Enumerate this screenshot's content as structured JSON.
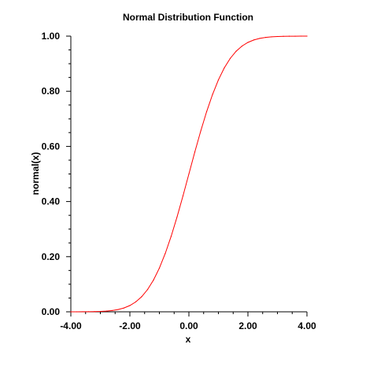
{
  "chart_data": {
    "type": "line",
    "title": "Normal Distribution Function",
    "xlabel": "x",
    "ylabel": "normal(x)",
    "xlim": [
      -4.0,
      4.0
    ],
    "ylim": [
      0.0,
      1.0
    ],
    "x_tick_labels": [
      "-4.00",
      "-2.00",
      "0.00",
      "2.00",
      "4.00"
    ],
    "y_tick_labels": [
      "0.00",
      "0.20",
      "0.40",
      "0.60",
      "0.80",
      "1.00"
    ],
    "grid": false,
    "series": [
      {
        "color": "#ff0000",
        "x": [
          -4.0,
          -3.8,
          -3.6,
          -3.4,
          -3.2,
          -3.0,
          -2.8,
          -2.6,
          -2.4,
          -2.2,
          -2.0,
          -1.8,
          -1.6,
          -1.4,
          -1.2,
          -1.0,
          -0.8,
          -0.6,
          -0.4,
          -0.2,
          0.0,
          0.2,
          0.4,
          0.6,
          0.8,
          1.0,
          1.2,
          1.4,
          1.6,
          1.8,
          2.0,
          2.2,
          2.4,
          2.6,
          2.8,
          3.0,
          3.2,
          3.4,
          3.6,
          3.8,
          4.0
        ],
        "y": [
          0.0,
          0.0001,
          0.0002,
          0.0003,
          0.0007,
          0.0013,
          0.0026,
          0.0047,
          0.0082,
          0.0139,
          0.0228,
          0.0359,
          0.0548,
          0.0808,
          0.1151,
          0.1587,
          0.2119,
          0.2743,
          0.3446,
          0.4207,
          0.5,
          0.5793,
          0.6554,
          0.7257,
          0.7881,
          0.8413,
          0.8849,
          0.9192,
          0.9452,
          0.9641,
          0.9772,
          0.9861,
          0.9918,
          0.9953,
          0.9974,
          0.9987,
          0.9993,
          0.9997,
          0.9998,
          0.9999,
          1.0
        ]
      }
    ]
  }
}
